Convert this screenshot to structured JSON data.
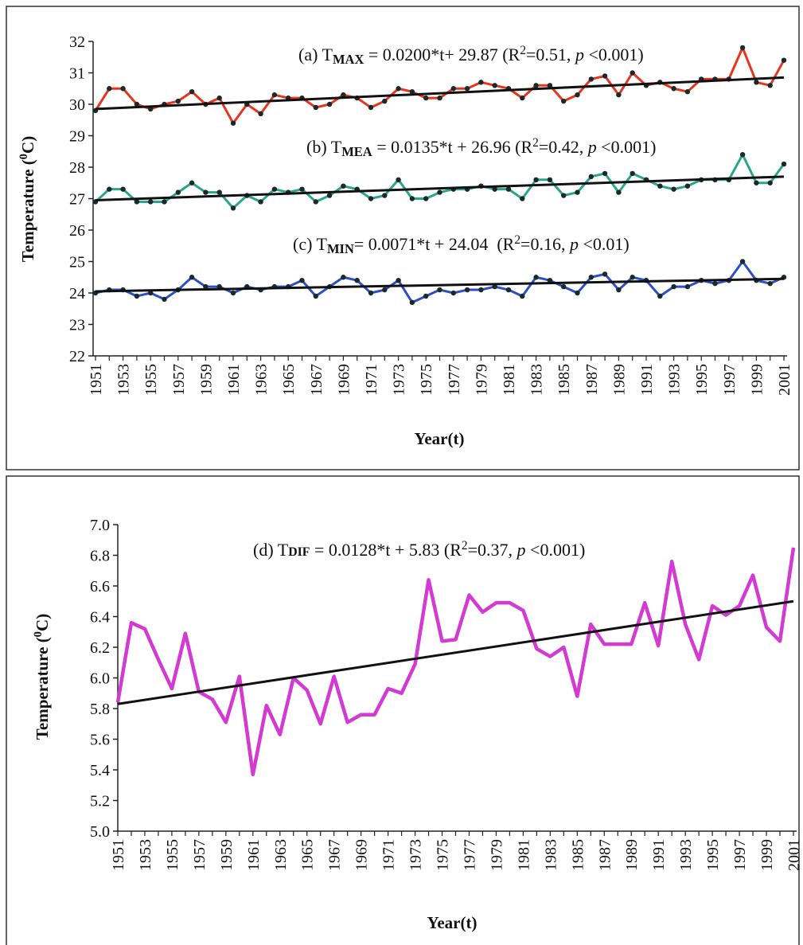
{
  "chart_data": [
    {
      "type": "line",
      "x_label": "Year(t)",
      "y_label": [
        {
          "text": "Temperature ("
        },
        {
          "text": "0",
          "style": "sup"
        },
        {
          "text": "C)"
        }
      ],
      "categories": [
        "1951",
        null,
        "1953",
        null,
        "1955",
        null,
        "1957",
        null,
        "1959",
        null,
        "1961",
        null,
        "1963",
        null,
        "1965",
        null,
        "1967",
        null,
        "1969",
        null,
        "1971",
        null,
        "1973",
        null,
        "1975",
        null,
        "1977",
        null,
        "1979",
        null,
        "1981",
        null,
        "1983",
        null,
        "1985",
        null,
        "1987",
        null,
        "1989",
        null,
        "1991",
        null,
        "1993",
        null,
        "1995",
        null,
        "1997",
        null,
        "1999",
        null,
        "2001"
      ],
      "ylim": [
        22,
        32
      ],
      "yticks": [
        22,
        23,
        24,
        25,
        26,
        27,
        28,
        29,
        30,
        31,
        32
      ],
      "markers": true,
      "trend_color": "#111111",
      "series": [
        {
          "color": "#e8341c",
          "values": [
            29.8,
            30.5,
            30.5,
            30.0,
            29.85,
            30.0,
            30.1,
            30.4,
            30.0,
            30.2,
            29.4,
            30.0,
            29.7,
            30.3,
            30.2,
            30.2,
            29.9,
            30.0,
            30.3,
            30.2,
            29.9,
            30.1,
            30.5,
            30.4,
            30.2,
            30.2,
            30.5,
            30.5,
            30.7,
            30.6,
            30.5,
            30.2,
            30.6,
            30.6,
            30.1,
            30.3,
            30.8,
            30.9,
            30.3,
            31.0,
            30.6,
            30.7,
            30.5,
            30.4,
            30.8,
            30.8,
            30.8,
            31.8,
            30.7,
            30.6,
            31.4
          ],
          "trend_values": [
            29.85,
            30.85
          ]
        },
        {
          "color": "#2aa58a",
          "values": [
            26.9,
            27.3,
            27.3,
            26.9,
            26.9,
            26.9,
            27.2,
            27.5,
            27.2,
            27.2,
            26.7,
            27.1,
            26.9,
            27.3,
            27.2,
            27.3,
            26.9,
            27.1,
            27.4,
            27.3,
            27.0,
            27.1,
            27.6,
            27.0,
            27.0,
            27.2,
            27.3,
            27.3,
            27.4,
            27.3,
            27.3,
            27.0,
            27.6,
            27.6,
            27.1,
            27.2,
            27.7,
            27.8,
            27.2,
            27.8,
            27.6,
            27.4,
            27.3,
            27.4,
            27.6,
            27.6,
            27.6,
            28.4,
            27.5,
            27.5,
            28.1
          ],
          "trend_values": [
            26.95,
            27.7
          ]
        },
        {
          "color": "#2a4fc8",
          "values": [
            24.0,
            24.1,
            24.1,
            23.9,
            24.0,
            23.8,
            24.1,
            24.5,
            24.2,
            24.2,
            24.0,
            24.2,
            24.1,
            24.2,
            24.2,
            24.4,
            23.9,
            24.2,
            24.5,
            24.4,
            24.0,
            24.1,
            24.4,
            23.7,
            23.9,
            24.1,
            24.0,
            24.1,
            24.1,
            24.2,
            24.1,
            23.9,
            24.5,
            24.4,
            24.2,
            24.0,
            24.5,
            24.6,
            24.1,
            24.5,
            24.4,
            23.9,
            24.2,
            24.2,
            24.4,
            24.3,
            24.4,
            25.0,
            24.4,
            24.3,
            24.5
          ],
          "trend_values": [
            24.05,
            24.45
          ]
        }
      ],
      "annotations": [
        [
          {
            "text": "(a) T"
          },
          {
            "text": "MAX",
            "style": "sub"
          },
          {
            "text": " = 0.0200*t+ 29.87 (R"
          },
          {
            "text": "2",
            "style": "sup"
          },
          {
            "text": "=0.51, "
          },
          {
            "text": "p",
            "style": "italic"
          },
          {
            "text": " <0.001)"
          }
        ],
        [
          {
            "text": "(b) T"
          },
          {
            "text": "MEA",
            "style": "sub"
          },
          {
            "text": " = 0.0135*t + 26.96 (R"
          },
          {
            "text": "2",
            "style": "sup"
          },
          {
            "text": "=0.42, "
          },
          {
            "text": "p",
            "style": "italic"
          },
          {
            "text": " <0.001)"
          }
        ],
        [
          {
            "text": "(c) T"
          },
          {
            "text": "MIN",
            "style": "sub"
          },
          {
            "text": "= 0.0071*t + 24.04  (R"
          },
          {
            "text": "2",
            "style": "sup"
          },
          {
            "text": "=0.16, "
          },
          {
            "text": "p",
            "style": "italic"
          },
          {
            "text": " <0.01)"
          }
        ]
      ]
    },
    {
      "type": "line",
      "x_label": "Year(t)",
      "y_label": [
        {
          "text": "Temperature ("
        },
        {
          "text": "0",
          "style": "sup"
        },
        {
          "text": "C)"
        }
      ],
      "categories": [
        "1951",
        null,
        "1953",
        null,
        "1955",
        null,
        "1957",
        null,
        "1959",
        null,
        "1961",
        null,
        "1963",
        null,
        "1965",
        null,
        "1967",
        null,
        "1969",
        null,
        "1971",
        null,
        "1973",
        null,
        "1975",
        null,
        "1977",
        null,
        "1979",
        null,
        "1981",
        null,
        "1983",
        null,
        "1985",
        null,
        "1987",
        null,
        "1989",
        null,
        "1991",
        null,
        "1993",
        null,
        "1995",
        null,
        "1997",
        null,
        "1999",
        null,
        "2001"
      ],
      "ylim": [
        5.0,
        7.0
      ],
      "yticks": [
        {
          "value": 5,
          "label": "5.0"
        },
        5.2,
        5.4,
        5.6,
        5.8,
        {
          "value": 6,
          "label": "6.0"
        },
        6.2,
        6.4,
        6.6,
        6.8,
        {
          "value": 7,
          "label": "7.0"
        }
      ],
      "markers": false,
      "trend_color": "#111111",
      "series": [
        {
          "color": "#d23ad2",
          "values": [
            5.84,
            6.36,
            6.32,
            6.12,
            5.93,
            6.29,
            5.91,
            5.86,
            5.71,
            6.01,
            5.37,
            5.82,
            5.63,
            6.0,
            5.92,
            5.7,
            6.01,
            5.71,
            5.76,
            5.76,
            5.93,
            5.9,
            6.09,
            6.64,
            6.24,
            6.25,
            6.54,
            6.43,
            6.49,
            6.49,
            6.44,
            6.19,
            6.14,
            6.2,
            5.88,
            6.35,
            6.22,
            6.22,
            6.22,
            6.49,
            6.21,
            6.76,
            6.35,
            6.12,
            6.47,
            6.41,
            6.47,
            6.67,
            6.33,
            6.24,
            6.85
          ],
          "trend_values": [
            5.83,
            6.5
          ]
        }
      ],
      "annotations": [
        [
          {
            "text": "(d) T"
          },
          {
            "text": "DIF",
            "style": "small"
          },
          {
            "text": " = 0.0128*t + 5.83 (R"
          },
          {
            "text": "2",
            "style": "sup"
          },
          {
            "text": "=0.37, "
          },
          {
            "text": "p",
            "style": "italic"
          },
          {
            "text": " <0.001)"
          }
        ]
      ]
    }
  ]
}
